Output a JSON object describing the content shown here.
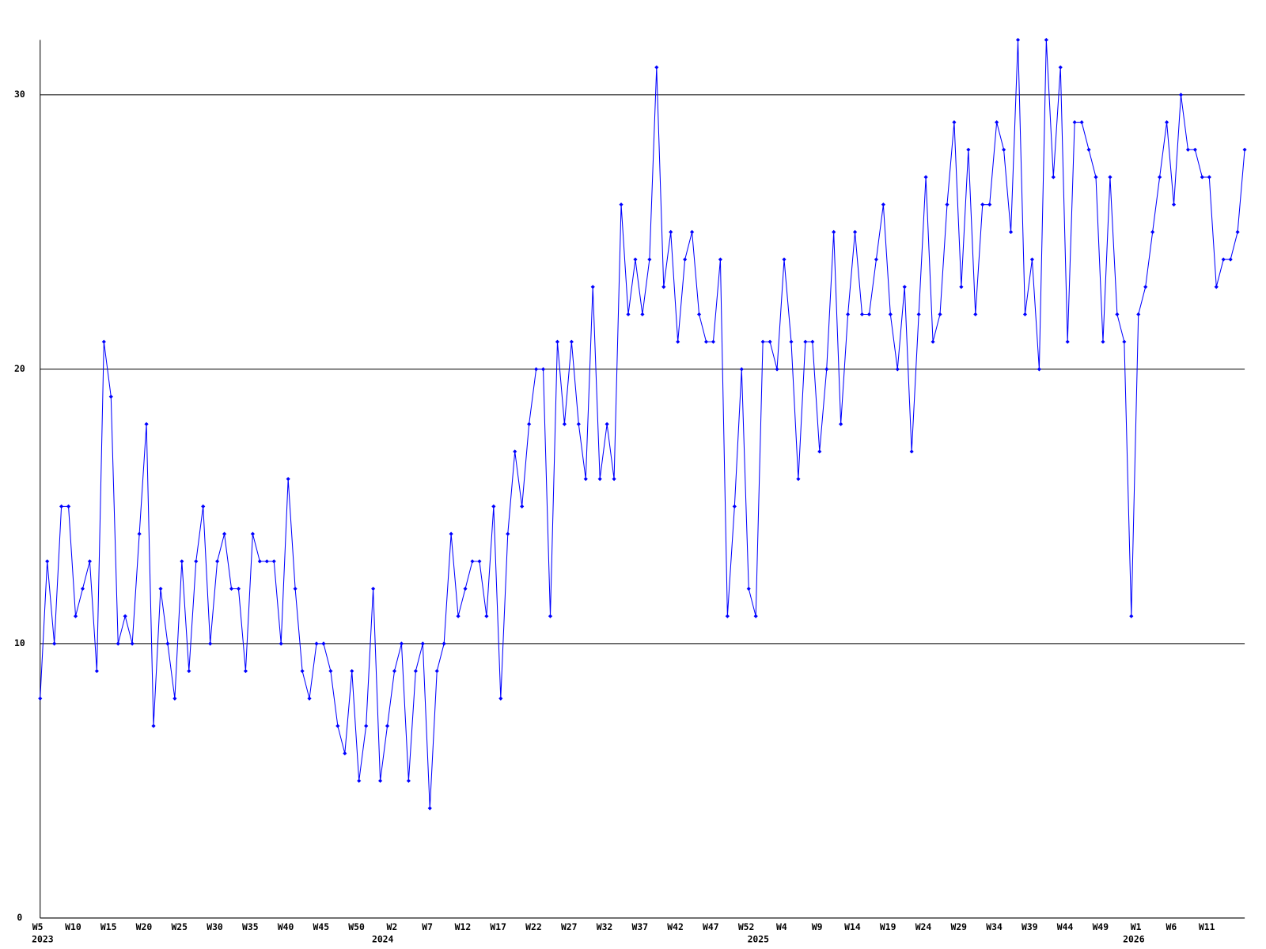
{
  "chart_data": {
    "type": "line",
    "categories": [
      "W5",
      null,
      null,
      null,
      null,
      "W10",
      null,
      null,
      null,
      null,
      "W15",
      null,
      null,
      null,
      null,
      "W20",
      null,
      null,
      null,
      null,
      "W25",
      null,
      null,
      null,
      null,
      "W30",
      null,
      null,
      null,
      null,
      "W35",
      null,
      null,
      null,
      null,
      "W40",
      null,
      null,
      null,
      null,
      "W45",
      null,
      null,
      null,
      null,
      "W50",
      null,
      null,
      null,
      null,
      "W2",
      null,
      null,
      null,
      null,
      "W7",
      null,
      null,
      null,
      null,
      "W12",
      null,
      null,
      null,
      null,
      "W17",
      null,
      null,
      null,
      null,
      "W22",
      null,
      null,
      null,
      null,
      "W27",
      null,
      null,
      null,
      null,
      "W32",
      null,
      null,
      null,
      null,
      "W37",
      null,
      null,
      null,
      null,
      "W42",
      null,
      null,
      null,
      null,
      "W47",
      null,
      null,
      null,
      null,
      "W52",
      null,
      null,
      null,
      null,
      "W4",
      null,
      null,
      null,
      null,
      "W9",
      null,
      null,
      null,
      null,
      "W14",
      null,
      null,
      null,
      null,
      "W19",
      null,
      null,
      null,
      null,
      "W24",
      null,
      null,
      null,
      null,
      "W29",
      null,
      null,
      null,
      null,
      "W34",
      null,
      null,
      null,
      null,
      "W39",
      null,
      null,
      null,
      null,
      "W44",
      null,
      null,
      null,
      null,
      "W49",
      null,
      null,
      null,
      null,
      "W1",
      null,
      null,
      null,
      null,
      "W6",
      null,
      null,
      null,
      null,
      "W11",
      null,
      null,
      null,
      null,
      null
    ],
    "x_years": [
      "2023",
      null,
      null,
      null,
      null,
      null,
      null,
      null,
      null,
      null,
      null,
      null,
      null,
      null,
      null,
      null,
      null,
      null,
      null,
      null,
      null,
      null,
      null,
      null,
      null,
      null,
      null,
      null,
      null,
      null,
      null,
      null,
      null,
      null,
      null,
      null,
      null,
      null,
      null,
      null,
      null,
      null,
      null,
      null,
      null,
      null,
      null,
      null,
      "2024",
      null,
      null,
      null,
      null,
      null,
      null,
      null,
      null,
      null,
      null,
      null,
      null,
      null,
      null,
      null,
      null,
      null,
      null,
      null,
      null,
      null,
      null,
      null,
      null,
      null,
      null,
      null,
      null,
      null,
      null,
      null,
      null,
      null,
      null,
      null,
      null,
      null,
      null,
      null,
      null,
      null,
      null,
      null,
      null,
      null,
      null,
      null,
      null,
      null,
      null,
      null,
      null,
      "2025",
      null,
      null,
      null,
      null,
      null,
      null,
      null,
      null,
      null,
      null,
      null,
      null,
      null,
      null,
      null,
      null,
      null,
      null,
      null,
      null,
      null,
      null,
      null,
      null,
      null,
      null,
      null,
      null,
      null,
      null,
      null,
      null,
      null,
      null,
      null,
      null,
      null,
      null,
      null,
      null,
      null,
      null,
      null,
      null,
      null,
      null,
      null,
      null,
      null,
      null,
      null,
      null,
      "2026",
      null,
      null,
      null,
      null,
      null,
      null,
      null,
      null,
      null,
      null,
      null,
      null,
      null,
      null,
      null,
      null
    ],
    "values": [
      8,
      13,
      10,
      15,
      15,
      11,
      12,
      13,
      9,
      21,
      19,
      10,
      11,
      10,
      14,
      18,
      7,
      12,
      10,
      8,
      13,
      9,
      13,
      15,
      10,
      13,
      14,
      12,
      12,
      9,
      14,
      13,
      13,
      13,
      10,
      16,
      12,
      9,
      8,
      10,
      10,
      9,
      7,
      6,
      9,
      5,
      7,
      12,
      5,
      7,
      9,
      10,
      5,
      9,
      10,
      4,
      9,
      10,
      14,
      11,
      12,
      13,
      13,
      11,
      15,
      8,
      14,
      17,
      15,
      18,
      20,
      20,
      11,
      21,
      18,
      21,
      18,
      16,
      23,
      16,
      18,
      16,
      26,
      22,
      24,
      22,
      24,
      31,
      23,
      25,
      21,
      24,
      25,
      22,
      21,
      21,
      24,
      11,
      15,
      20,
      12,
      11,
      21,
      21,
      20,
      24,
      21,
      16,
      21,
      21,
      17,
      20,
      25,
      18,
      22,
      25,
      22,
      22,
      24,
      26,
      22,
      20,
      23,
      17,
      22,
      27,
      21,
      22,
      26,
      29,
      23,
      28,
      22,
      26,
      26,
      29,
      28,
      25,
      32,
      22,
      24,
      20,
      32,
      27,
      31,
      21,
      29,
      29,
      28,
      27,
      21,
      27,
      22,
      21,
      11,
      22,
      23,
      25,
      27,
      29,
      26,
      30,
      28,
      28,
      27,
      27,
      23,
      24,
      24,
      25,
      28
    ],
    "color": "#0000ff",
    "ylim": [
      0,
      32
    ],
    "yticks": [
      0,
      10,
      20,
      30
    ],
    "grid": true
  }
}
